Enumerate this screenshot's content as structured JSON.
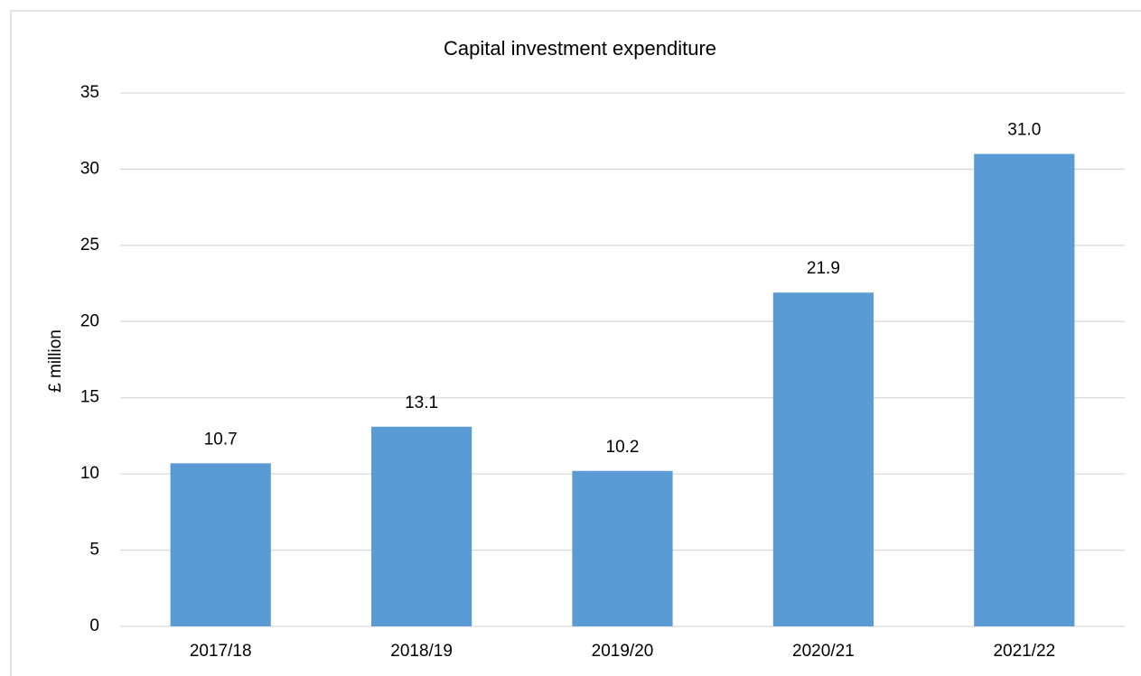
{
  "chart_data": {
    "type": "bar",
    "title": "Capital investment expenditure",
    "y_label": "£ million",
    "categories": [
      "2017/18",
      "2018/19",
      "2019/20",
      "2020/21",
      "2021/22"
    ],
    "values": [
      10.7,
      13.1,
      10.2,
      21.9,
      31.0
    ],
    "value_labels": [
      "10.7",
      "13.1",
      "10.2",
      "21.9",
      "31.0"
    ],
    "color": "#5b9bd5",
    "ylim": [
      0,
      35
    ],
    "yticks": [
      0,
      5,
      10,
      15,
      20,
      25,
      30,
      35
    ],
    "grid": true
  }
}
